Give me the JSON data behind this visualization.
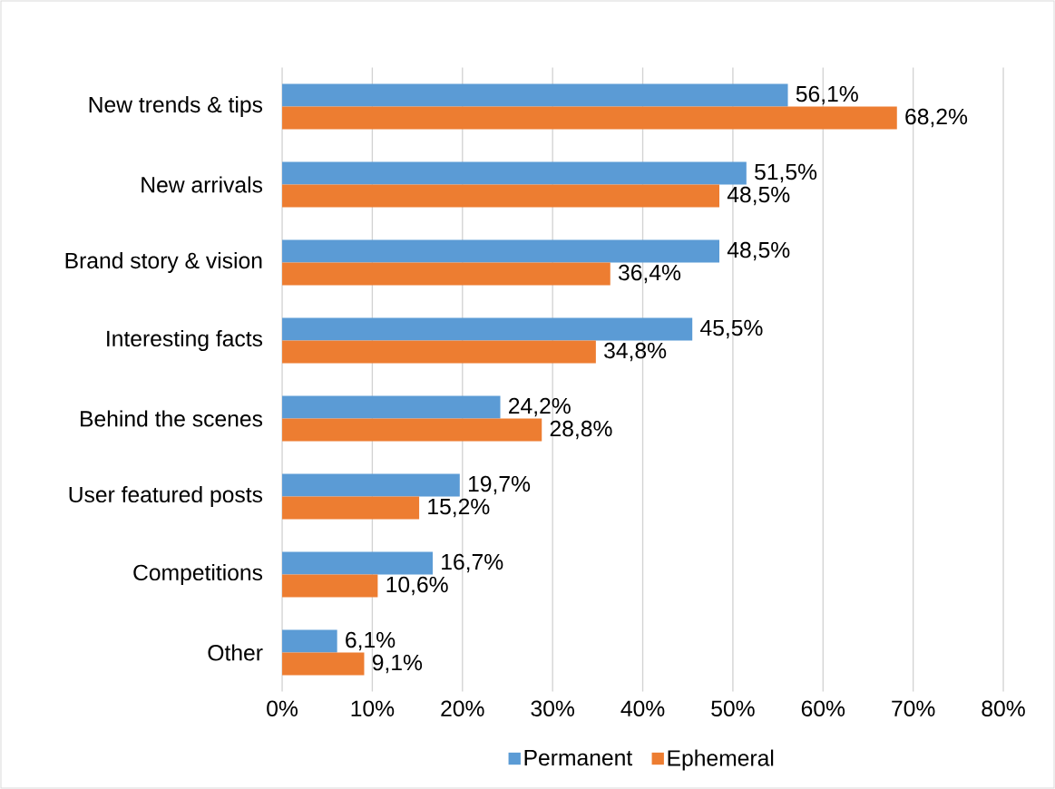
{
  "chart_data": {
    "type": "bar",
    "orientation": "horizontal",
    "categories": [
      "New trends & tips",
      "New arrivals",
      "Brand story & vision",
      "Interesting facts",
      "Behind the scenes",
      "User featured posts",
      "Competitions",
      "Other"
    ],
    "series": [
      {
        "name": "Permanent",
        "color": "#5b9bd5",
        "values": [
          56.1,
          51.5,
          48.5,
          45.5,
          24.2,
          19.7,
          16.7,
          6.1
        ],
        "value_labels": [
          "56,1%",
          "51,5%",
          "48,5%",
          "45,5%",
          "24,2%",
          "19,7%",
          "16,7%",
          "6,1%"
        ]
      },
      {
        "name": "Ephemeral",
        "color": "#ed7d31",
        "values": [
          68.2,
          48.5,
          36.4,
          34.8,
          28.8,
          15.2,
          10.6,
          9.1
        ],
        "value_labels": [
          "68,2%",
          "48,5%",
          "36,4%",
          "34,8%",
          "28,8%",
          "15,2%",
          "10,6%",
          "9,1%"
        ]
      }
    ],
    "xlim": [
      0,
      80
    ],
    "xticks": [
      {
        "value": 0,
        "label": "0%"
      },
      {
        "value": 10,
        "label": "10%"
      },
      {
        "value": 20,
        "label": "20%"
      },
      {
        "value": 30,
        "label": "30%"
      },
      {
        "value": 40,
        "label": "40%"
      },
      {
        "value": 50,
        "label": "50%"
      },
      {
        "value": 60,
        "label": "60%"
      },
      {
        "value": 70,
        "label": "70%"
      },
      {
        "value": 80,
        "label": "80%"
      }
    ],
    "grid": "x",
    "legend": "bottom"
  }
}
